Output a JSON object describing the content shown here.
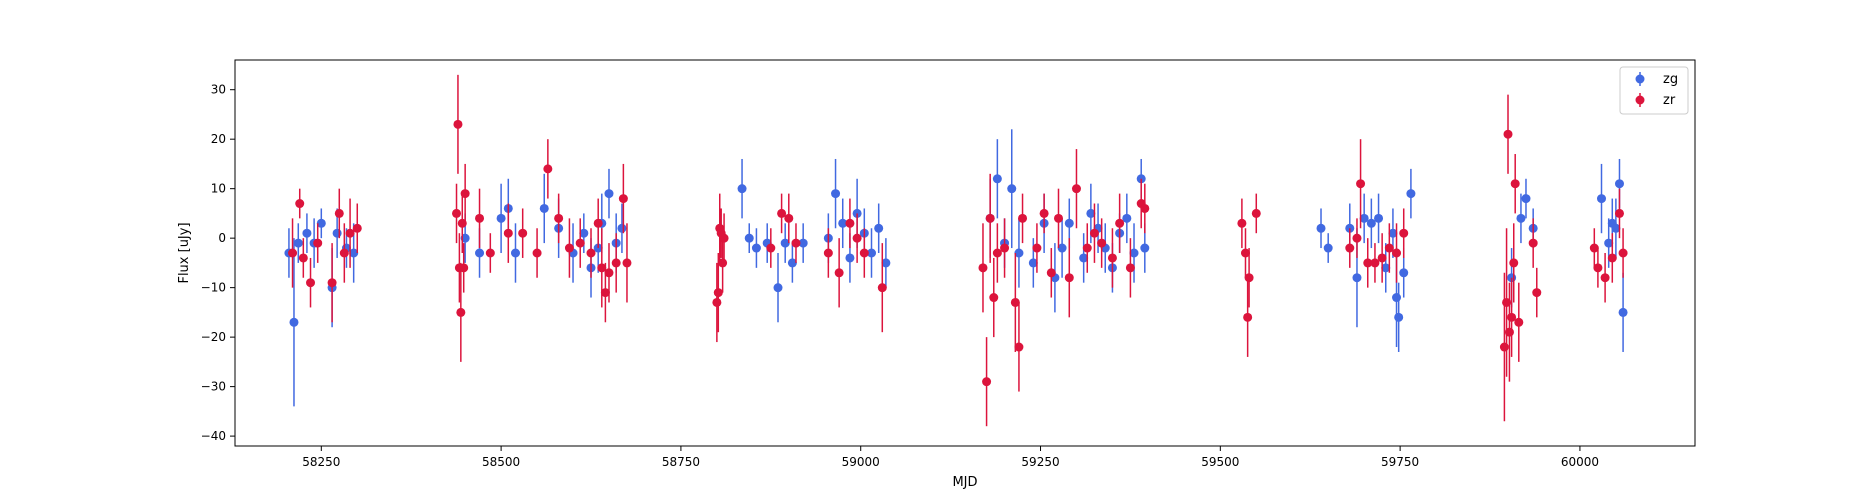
{
  "chart_data": {
    "type": "scatter",
    "title": "",
    "xlabel": "MJD",
    "ylabel": "Flux [uJy]",
    "xlim": [
      58130,
      60160
    ],
    "ylim": [
      -42,
      36
    ],
    "xticks": [
      58250,
      58500,
      58750,
      59000,
      59250,
      59500,
      59750,
      60000
    ],
    "yticks": [
      -40,
      -30,
      -20,
      -10,
      0,
      10,
      20,
      30
    ],
    "grid": false,
    "legend_position": "top-right",
    "series": [
      {
        "name": "zg",
        "color": "#4169e1",
        "points": [
          [
            58205,
            -3,
            5
          ],
          [
            58212,
            -17,
            17
          ],
          [
            58218,
            -1,
            4
          ],
          [
            58230,
            1,
            4
          ],
          [
            58240,
            -1,
            5
          ],
          [
            58250,
            3,
            3
          ],
          [
            58265,
            -10,
            8
          ],
          [
            58272,
            1,
            5
          ],
          [
            58285,
            -2,
            4
          ],
          [
            58295,
            -3,
            6
          ],
          [
            58450,
            0,
            5
          ],
          [
            58470,
            -3,
            5
          ],
          [
            58500,
            4,
            7
          ],
          [
            58510,
            6,
            6
          ],
          [
            58520,
            -3,
            6
          ],
          [
            58560,
            6,
            7
          ],
          [
            58580,
            2,
            6
          ],
          [
            58600,
            -3,
            6
          ],
          [
            58615,
            1,
            4
          ],
          [
            58625,
            -6,
            6
          ],
          [
            58635,
            -2,
            5
          ],
          [
            58640,
            3,
            6
          ],
          [
            58650,
            9,
            5
          ],
          [
            58660,
            -1,
            6
          ],
          [
            58668,
            2,
            5
          ],
          [
            58835,
            10,
            6
          ],
          [
            58845,
            0,
            3
          ],
          [
            58855,
            -2,
            4
          ],
          [
            58870,
            -1,
            4
          ],
          [
            58885,
            -10,
            7
          ],
          [
            58895,
            -1,
            4
          ],
          [
            58905,
            -5,
            4
          ],
          [
            58920,
            -1,
            4
          ],
          [
            58955,
            0,
            5
          ],
          [
            58965,
            9,
            7
          ],
          [
            58975,
            3,
            5
          ],
          [
            58985,
            -4,
            5
          ],
          [
            58995,
            5,
            7
          ],
          [
            59005,
            1,
            5
          ],
          [
            59015,
            -3,
            5
          ],
          [
            59025,
            2,
            5
          ],
          [
            59035,
            -5,
            5
          ],
          [
            59180,
            4,
            8
          ],
          [
            59190,
            12,
            8
          ],
          [
            59200,
            -1,
            5
          ],
          [
            59210,
            10,
            12
          ],
          [
            59220,
            -3,
            7
          ],
          [
            59240,
            -5,
            5
          ],
          [
            59255,
            3,
            6
          ],
          [
            59270,
            -8,
            7
          ],
          [
            59280,
            -2,
            6
          ],
          [
            59290,
            3,
            5
          ],
          [
            59310,
            -4,
            5
          ],
          [
            59320,
            5,
            6
          ],
          [
            59330,
            2,
            5
          ],
          [
            59340,
            -2,
            5
          ],
          [
            59350,
            -6,
            5
          ],
          [
            59360,
            1,
            4
          ],
          [
            59370,
            4,
            5
          ],
          [
            59380,
            -3,
            6
          ],
          [
            59390,
            12,
            4
          ],
          [
            59395,
            -2,
            5
          ],
          [
            59640,
            2,
            4
          ],
          [
            59650,
            -2,
            3
          ],
          [
            59680,
            2,
            5
          ],
          [
            59690,
            -8,
            10
          ],
          [
            59700,
            4,
            5
          ],
          [
            59710,
            3,
            5
          ],
          [
            59720,
            4,
            5
          ],
          [
            59730,
            -6,
            5
          ],
          [
            59740,
            1,
            5
          ],
          [
            59745,
            -12,
            10
          ],
          [
            59748,
            -16,
            7
          ],
          [
            59755,
            -7,
            5
          ],
          [
            59765,
            9,
            5
          ],
          [
            59905,
            -8,
            6
          ],
          [
            59918,
            4,
            5
          ],
          [
            59925,
            8,
            4
          ],
          [
            59935,
            2,
            4
          ],
          [
            60030,
            8,
            7
          ],
          [
            60040,
            -1,
            5
          ],
          [
            60045,
            3,
            5
          ],
          [
            60050,
            2,
            6
          ],
          [
            60055,
            11,
            5
          ],
          [
            60060,
            -15,
            8
          ]
        ]
      },
      {
        "name": "zr",
        "color": "#dc143c",
        "points": [
          [
            58210,
            -3,
            7
          ],
          [
            58220,
            7,
            3
          ],
          [
            58225,
            -4,
            4
          ],
          [
            58235,
            -9,
            5
          ],
          [
            58245,
            -1,
            4
          ],
          [
            58265,
            -9,
            8
          ],
          [
            58275,
            5,
            5
          ],
          [
            58282,
            -3,
            6
          ],
          [
            58290,
            1,
            7
          ],
          [
            58300,
            2,
            5
          ],
          [
            58438,
            5,
            6
          ],
          [
            58440,
            23,
            10
          ],
          [
            58442,
            -6,
            7
          ],
          [
            58444,
            -15,
            10
          ],
          [
            58446,
            3,
            6
          ],
          [
            58448,
            -6,
            5
          ],
          [
            58450,
            9,
            6
          ],
          [
            58470,
            4,
            6
          ],
          [
            58485,
            -3,
            4
          ],
          [
            58510,
            1,
            6
          ],
          [
            58530,
            1,
            5
          ],
          [
            58550,
            -3,
            5
          ],
          [
            58565,
            14,
            6
          ],
          [
            58580,
            4,
            5
          ],
          [
            58595,
            -2,
            6
          ],
          [
            58610,
            -1,
            5
          ],
          [
            58625,
            -3,
            5
          ],
          [
            58635,
            3,
            5
          ],
          [
            58640,
            -6,
            8
          ],
          [
            58645,
            -11,
            6
          ],
          [
            58650,
            -7,
            6
          ],
          [
            58660,
            -5,
            6
          ],
          [
            58670,
            8,
            7
          ],
          [
            58675,
            -5,
            8
          ],
          [
            58800,
            -13,
            8
          ],
          [
            58802,
            -11,
            8
          ],
          [
            58804,
            2,
            7
          ],
          [
            58806,
            1,
            5
          ],
          [
            58808,
            -5,
            6
          ],
          [
            58810,
            0,
            5
          ],
          [
            58875,
            -2,
            4
          ],
          [
            58890,
            5,
            4
          ],
          [
            58900,
            4,
            5
          ],
          [
            58910,
            -1,
            4
          ],
          [
            58955,
            -3,
            5
          ],
          [
            58970,
            -7,
            7
          ],
          [
            58985,
            3,
            5
          ],
          [
            58995,
            0,
            5
          ],
          [
            59005,
            -3,
            5
          ],
          [
            59030,
            -10,
            9
          ],
          [
            59170,
            -6,
            9
          ],
          [
            59175,
            -29,
            9
          ],
          [
            59180,
            4,
            9
          ],
          [
            59185,
            -12,
            8
          ],
          [
            59190,
            -3,
            6
          ],
          [
            59200,
            -2,
            6
          ],
          [
            59215,
            -13,
            10
          ],
          [
            59220,
            -22,
            9
          ],
          [
            59225,
            4,
            5
          ],
          [
            59245,
            -2,
            5
          ],
          [
            59255,
            5,
            4
          ],
          [
            59265,
            -7,
            5
          ],
          [
            59275,
            4,
            6
          ],
          [
            59290,
            -8,
            8
          ],
          [
            59300,
            10,
            8
          ],
          [
            59315,
            -2,
            5
          ],
          [
            59325,
            1,
            6
          ],
          [
            59335,
            -1,
            5
          ],
          [
            59350,
            -4,
            6
          ],
          [
            59360,
            3,
            6
          ],
          [
            59375,
            -6,
            6
          ],
          [
            59390,
            7,
            5
          ],
          [
            59395,
            6,
            5
          ],
          [
            59530,
            3,
            5
          ],
          [
            59535,
            -3,
            5
          ],
          [
            59538,
            -16,
            8
          ],
          [
            59540,
            -8,
            6
          ],
          [
            59550,
            5,
            4
          ],
          [
            59680,
            -2,
            4
          ],
          [
            59690,
            0,
            4
          ],
          [
            59695,
            11,
            9
          ],
          [
            59705,
            -5,
            5
          ],
          [
            59715,
            -5,
            4
          ],
          [
            59725,
            -4,
            5
          ],
          [
            59735,
            -2,
            5
          ],
          [
            59745,
            -3,
            6
          ],
          [
            59755,
            1,
            5
          ],
          [
            59895,
            -22,
            15
          ],
          [
            59898,
            -13,
            15
          ],
          [
            59900,
            21,
            8
          ],
          [
            59902,
            -19,
            10
          ],
          [
            59905,
            -16,
            8
          ],
          [
            59908,
            -5,
            8
          ],
          [
            59910,
            11,
            6
          ],
          [
            59915,
            -17,
            8
          ],
          [
            59935,
            -1,
            5
          ],
          [
            59940,
            -11,
            5
          ],
          [
            60020,
            -2,
            4
          ],
          [
            60025,
            -6,
            4
          ],
          [
            60035,
            -8,
            5
          ],
          [
            60045,
            -4,
            5
          ],
          [
            60055,
            5,
            5
          ],
          [
            60060,
            -3,
            5
          ]
        ]
      }
    ]
  }
}
